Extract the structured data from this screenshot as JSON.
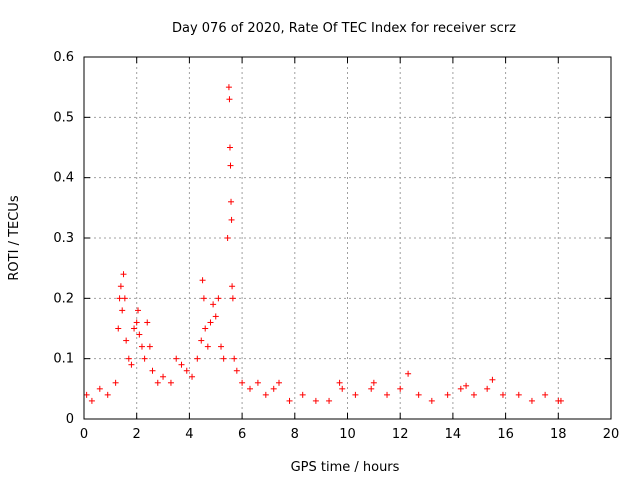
{
  "chart_data": {
    "type": "scatter",
    "title": "Day 076 of 2020, Rate Of TEC Index for receiver scrz",
    "xlabel": "GPS time / hours",
    "ylabel": "ROTI / TECUs",
    "xlim": [
      0,
      20
    ],
    "ylim": [
      0,
      0.6
    ],
    "x_ticks": [
      "0",
      "2",
      "4",
      "6",
      "8",
      "10",
      "12",
      "14",
      "16",
      "18",
      "20"
    ],
    "y_ticks": [
      "0",
      "0.1",
      "0.2",
      "0.3",
      "0.4",
      "0.5",
      "0.6"
    ],
    "grid": true,
    "marker": "+",
    "series": [
      {
        "name": "ROTI",
        "color": "#ff0000",
        "x": [
          0.1,
          0.3,
          0.6,
          0.9,
          1.2,
          1.3,
          1.35,
          1.4,
          1.45,
          1.5,
          1.55,
          1.6,
          1.7,
          1.8,
          1.9,
          2.0,
          2.05,
          2.1,
          2.2,
          2.3,
          2.4,
          2.5,
          2.6,
          2.8,
          3.0,
          3.3,
          3.5,
          3.7,
          3.9,
          4.1,
          4.3,
          4.45,
          4.5,
          4.55,
          4.6,
          4.7,
          4.8,
          4.9,
          5.0,
          5.1,
          5.2,
          5.3,
          5.45,
          5.5,
          5.52,
          5.54,
          5.56,
          5.58,
          5.6,
          5.62,
          5.65,
          5.7,
          5.8,
          6.0,
          6.3,
          6.6,
          6.9,
          7.2,
          7.4,
          7.8,
          8.3,
          8.8,
          9.3,
          9.7,
          9.8,
          10.3,
          10.9,
          11.0,
          11.5,
          12.0,
          12.3,
          12.7,
          13.2,
          13.8,
          14.3,
          14.5,
          14.8,
          15.3,
          15.5,
          15.9,
          16.5,
          17.0,
          17.5,
          18.0,
          18.1
        ],
        "y": [
          0.04,
          0.03,
          0.05,
          0.04,
          0.06,
          0.15,
          0.2,
          0.22,
          0.18,
          0.24,
          0.2,
          0.13,
          0.1,
          0.09,
          0.15,
          0.16,
          0.18,
          0.14,
          0.12,
          0.1,
          0.16,
          0.12,
          0.08,
          0.06,
          0.07,
          0.06,
          0.1,
          0.09,
          0.08,
          0.07,
          0.1,
          0.13,
          0.23,
          0.2,
          0.15,
          0.12,
          0.16,
          0.19,
          0.17,
          0.2,
          0.12,
          0.1,
          0.3,
          0.55,
          0.53,
          0.45,
          0.42,
          0.36,
          0.33,
          0.22,
          0.2,
          0.1,
          0.08,
          0.06,
          0.05,
          0.06,
          0.04,
          0.05,
          0.06,
          0.03,
          0.04,
          0.03,
          0.03,
          0.06,
          0.05,
          0.04,
          0.05,
          0.06,
          0.04,
          0.05,
          0.075,
          0.04,
          0.03,
          0.04,
          0.05,
          0.055,
          0.04,
          0.05,
          0.065,
          0.04,
          0.04,
          0.03,
          0.04,
          0.03,
          0.03
        ]
      }
    ]
  }
}
